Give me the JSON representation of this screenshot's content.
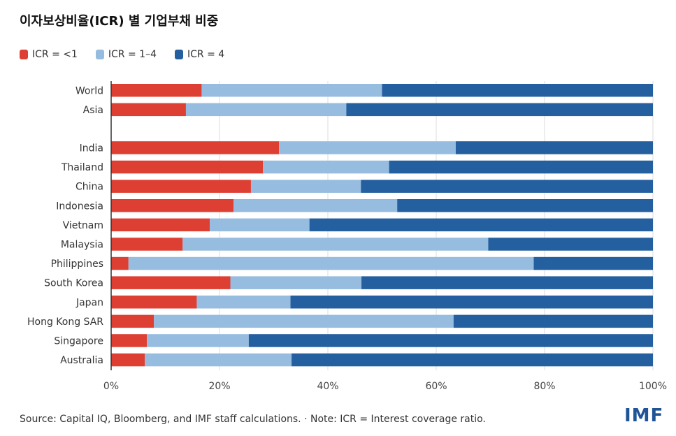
{
  "title": "이자보상비율(ICR) 별 기업부채 비중",
  "source": "Source: Capital IQ, Bloomberg, and IMF staff calculations. · Note: ICR = Interest coverage ratio.",
  "logo": "IMF",
  "chart_data": {
    "type": "bar",
    "orientation": "horizontal",
    "stacked": true,
    "title": "이자보상비율(ICR) 별 기업부채 비중",
    "xlim": [
      0,
      100
    ],
    "x_ticks": [
      "0%",
      "20%",
      "40%",
      "60%",
      "80%",
      "100%"
    ],
    "grid": true,
    "legend_position": "top-left",
    "categories": [
      "World",
      "Asia",
      "India",
      "Thailand",
      "China",
      "Indonesia",
      "Vietnam",
      "Malaysia",
      "Philippines",
      "South Korea",
      "Japan",
      "Hong Kong SAR",
      "Singapore",
      "Australia"
    ],
    "group_break_after": "Asia",
    "series": [
      {
        "name": "ICR = <1",
        "color": "#de3f33",
        "values": [
          16.7,
          13.8,
          31.0,
          28.0,
          25.8,
          22.6,
          18.2,
          13.2,
          3.2,
          22.0,
          15.8,
          7.9,
          6.6,
          6.2
        ]
      },
      {
        "name": "ICR = 1–4",
        "color": "#96bcdf",
        "values": [
          33.3,
          29.6,
          32.6,
          23.3,
          20.3,
          30.2,
          18.4,
          56.4,
          74.8,
          24.2,
          17.3,
          55.3,
          18.8,
          27.1
        ]
      },
      {
        "name": "ICR = 4",
        "color": "#245f9f",
        "values": [
          50.0,
          56.6,
          36.4,
          48.7,
          53.9,
          47.2,
          63.4,
          30.4,
          22.0,
          53.8,
          66.9,
          36.8,
          74.6,
          66.7
        ]
      }
    ]
  }
}
